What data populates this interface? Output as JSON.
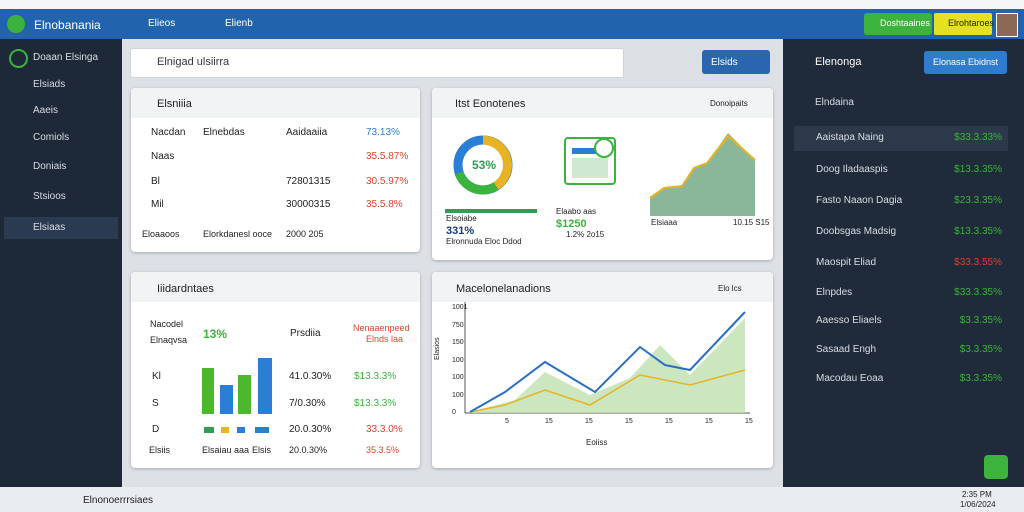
{
  "topbar": {
    "app_name": "Elnobanania",
    "menu": [
      "Elieos",
      "Elienb"
    ],
    "buttons": [
      "Doshtaaines",
      "Elrohtaroes"
    ]
  },
  "sidebar": [
    "Doaan Elsinga",
    "Elsiads",
    "Aaeis",
    "Comiols",
    "Doniais",
    "Stsioos",
    "Elsiaas"
  ],
  "search": {
    "placeholder": "Elnigad ulsiirra",
    "button": "Elsids"
  },
  "card1": {
    "title": "Elsniiia",
    "header": [
      "Nacdan",
      "Elnebdas",
      "Aaidaaiia",
      "73.13%"
    ],
    "rows": [
      {
        "label": "Naas",
        "value": "35.5.87%"
      },
      {
        "label": "Bl",
        "amount": "72801315",
        "value": "30.5.97%"
      },
      {
        "label": "Mil",
        "amount": "30000315",
        "value": "35.5.8%"
      }
    ],
    "footer": [
      "Eloaaoos",
      "Elorkdanesl ooce",
      "2000 205"
    ]
  },
  "card2": {
    "title": "Itst Eonotenes",
    "badge": "Donoipaits",
    "donut_label": "53%",
    "stats": [
      {
        "label": "Elsoiabe",
        "value": "331%",
        "note": "Elronnuda Eloc Ddod"
      },
      {
        "label": "Elaabo aas",
        "value": "$1250",
        "note": "1.2% 2o15"
      },
      {
        "label": "Elsiaaa",
        "note": "10.15 S15"
      }
    ]
  },
  "card3": {
    "title": "Iiidardntaes",
    "kpi_labels": [
      "Nacodel",
      "Elnaqvsa"
    ],
    "kpi": "13%",
    "column": "Prsdiia",
    "red_head": [
      "Nenaaenpeed",
      "Elnds laa"
    ],
    "rows": [
      {
        "label": "Kl",
        "a": "41.0.30%",
        "b": "$13.3.3%"
      },
      {
        "label": "S",
        "a": "7/0.30%",
        "b": "$13.3.3%"
      },
      {
        "label": "D",
        "a": "20.0.30%",
        "b": "33.3.0%"
      }
    ],
    "footer": [
      "Elsiis",
      "Elsaiau aaa",
      "Elsis",
      "20.0.30%",
      "35.3.5%"
    ]
  },
  "card4": {
    "title": "Macelonelanadions",
    "chip": "Elo lcs",
    "y_labels": [
      "1001",
      "750",
      "150",
      "100",
      "100",
      "100",
      "0"
    ],
    "x_labels": [
      "5",
      "15",
      "15",
      "15",
      "15",
      "15",
      "15"
    ],
    "y_title": "Elasios",
    "x_title": "Eoiiss"
  },
  "right": {
    "title": "Elenonga",
    "button": "Elonasa Ebidnst",
    "section": "Elndaina",
    "rows": [
      {
        "name": "Aaistapa Naing",
        "value": "$33.3.33%"
      },
      {
        "name": "Doog Iladaaspis",
        "value": "$13.3.35%"
      },
      {
        "name": "Fasto Naaon Dagia",
        "value": "$23.3.35%"
      },
      {
        "name": "Doobsgas Madsig",
        "value": "$13.3.35%"
      },
      {
        "name": "Maospit Eliad",
        "value": "$33.3.55%"
      },
      {
        "name": "Elnpdes",
        "value": "$33.3.35%"
      },
      {
        "name": "Aaesso Eliaels",
        "value": "$3.3.35%"
      },
      {
        "name": "Sasaad Engh",
        "value": "$3.3.35%"
      },
      {
        "name": "Macodau Eoaa",
        "value": "$3.3.35%"
      }
    ]
  },
  "taskbar": {
    "search": "Elnonoerrrsiaes",
    "time": "2:35 PM",
    "date": "1/06/2024"
  }
}
